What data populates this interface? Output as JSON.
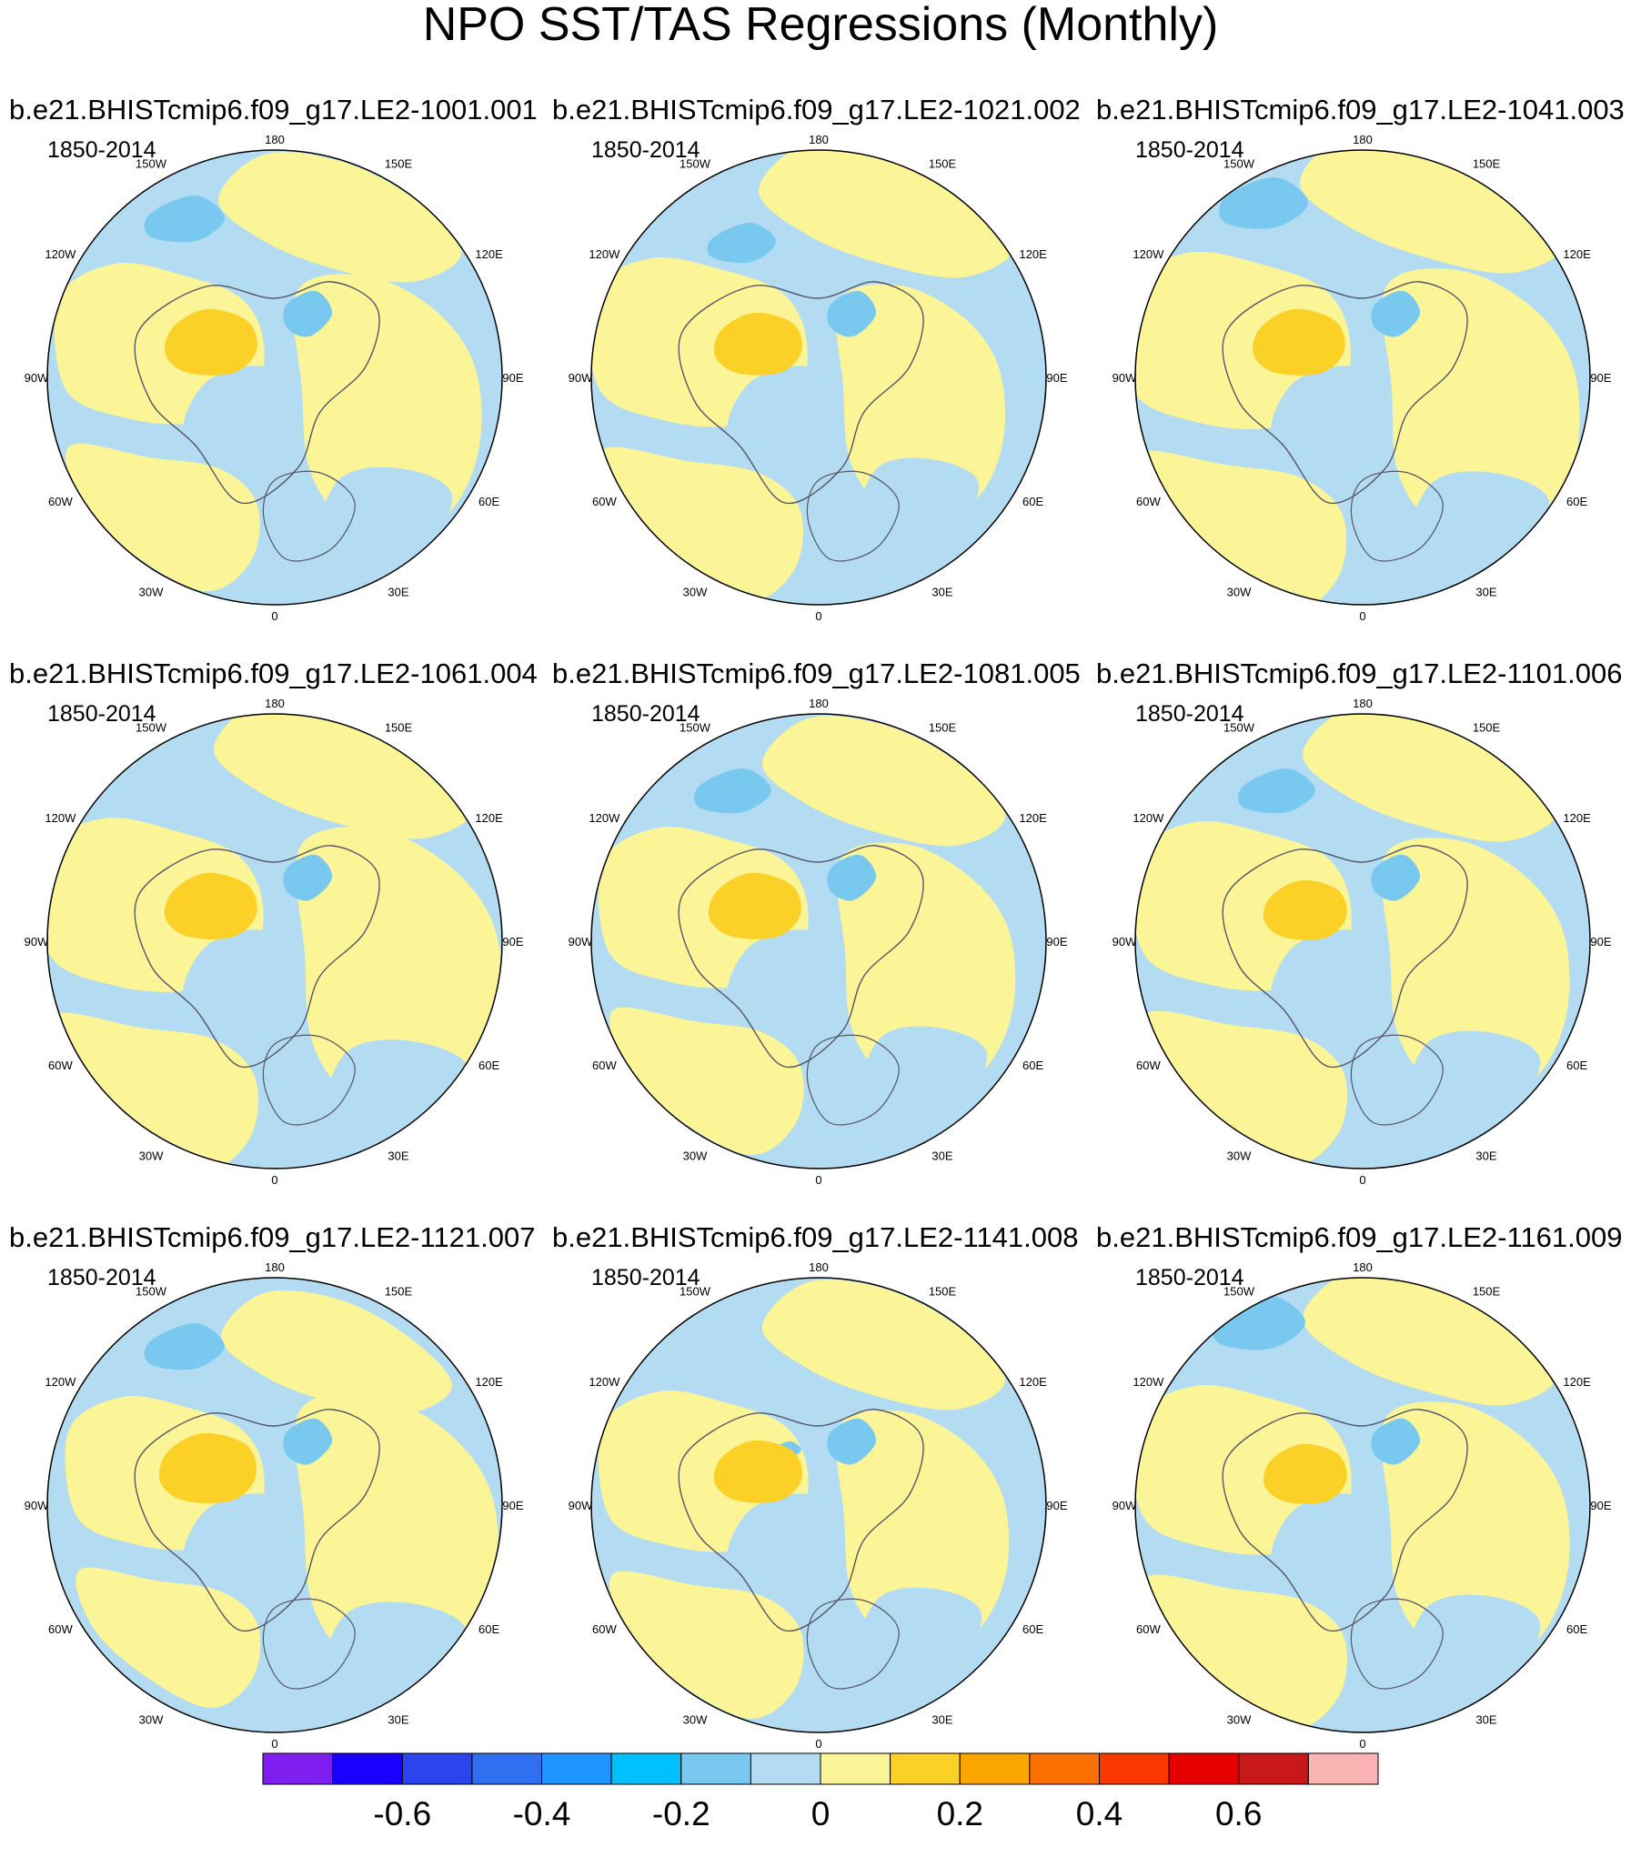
{
  "chart_data": {
    "type": "map",
    "title": "NPO SST/TAS Regressions (Monthly)",
    "projection": "north-polar-stereographic",
    "period_label": "1850-2014",
    "longitude_labels": [
      "180",
      "150E",
      "120E",
      "90E",
      "60E",
      "30E",
      "0",
      "30W",
      "60W",
      "90W",
      "120W",
      "150W"
    ],
    "panels": [
      {
        "title": "b.e21.BHISTcmip6.f09_g17.LE2-1001.001",
        "period": "1850-2014"
      },
      {
        "title": "b.e21.BHISTcmip6.f09_g17.LE2-1021.002",
        "period": "1850-2014"
      },
      {
        "title": "b.e21.BHISTcmip6.f09_g17.LE2-1041.003",
        "period": "1850-2014"
      },
      {
        "title": "b.e21.BHISTcmip6.f09_g17.LE2-1061.004",
        "period": "1850-2014"
      },
      {
        "title": "b.e21.BHISTcmip6.f09_g17.LE2-1081.005",
        "period": "1850-2014"
      },
      {
        "title": "b.e21.BHISTcmip6.f09_g17.LE2-1101.006",
        "period": "1850-2014"
      },
      {
        "title": "b.e21.BHISTcmip6.f09_g17.LE2-1121.007",
        "period": "1850-2014"
      },
      {
        "title": "b.e21.BHISTcmip6.f09_g17.LE2-1141.008",
        "period": "1850-2014"
      },
      {
        "title": "b.e21.BHISTcmip6.f09_g17.LE2-1161.009",
        "period": "1850-2014"
      }
    ],
    "colorbar": {
      "colors": [
        "#7f1fef",
        "#1a00ff",
        "#2a44ee",
        "#3070f0",
        "#1e96ff",
        "#00c0ff",
        "#78c8f0",
        "#b3dcf2",
        "#fbf598",
        "#fbd027",
        "#fba600",
        "#fb7000",
        "#fb3800",
        "#e60000",
        "#c8181a",
        "#fbb4b4"
      ],
      "tick_values": [
        -0.6,
        -0.4,
        -0.2,
        0,
        0.2,
        0.4,
        0.6
      ],
      "tick_labels": [
        "-0.6",
        "-0.4",
        "-0.2",
        "0",
        "0.2",
        "0.4",
        "0.6"
      ],
      "range": [
        -0.8,
        0.8
      ]
    }
  }
}
